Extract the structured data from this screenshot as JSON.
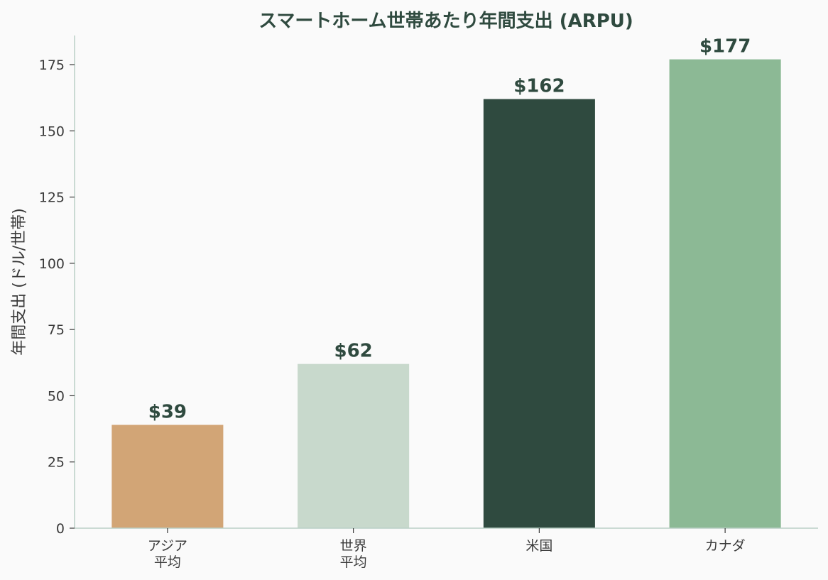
{
  "chart_data": {
    "type": "bar",
    "title": "スマートホーム世帯あたり年間支出 (ARPU)",
    "xlabel": "",
    "ylabel": "年間支出 (ドル/世帯)",
    "categories": [
      [
        "アジア",
        "平均"
      ],
      [
        "世界",
        "平均"
      ],
      [
        "米国"
      ],
      [
        "カナダ"
      ]
    ],
    "values": [
      39,
      62,
      162,
      177
    ],
    "value_labels": [
      "$39",
      "$62",
      "$162",
      "$177"
    ],
    "bar_colors": [
      "#d2a576",
      "#c8d9cc",
      "#2f4a3f",
      "#8cb995"
    ],
    "ylim": [
      0,
      186
    ],
    "yticks": [
      0,
      25,
      50,
      75,
      100,
      125,
      150,
      175
    ],
    "grid": false,
    "legend": "none"
  }
}
